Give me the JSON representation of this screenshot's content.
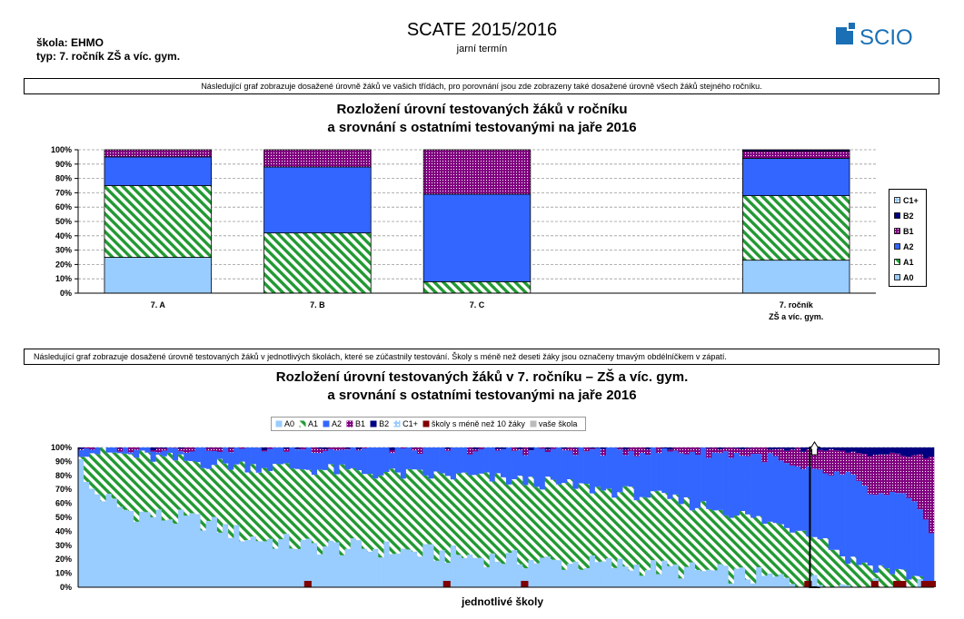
{
  "header": {
    "school_label": "škola: EHMO",
    "type_label": "typ: 7. ročník ZŠ a víc. gym.",
    "title": "SCATE 2015/2016",
    "subtitle": "jarní termín",
    "logo_text": "SCIO",
    "logo_color": "#1a6fb5"
  },
  "note1": "Následující graf zobrazuje dosažené úrovně žáků ve vašich třídách, pro porovnání jsou zde zobrazeny také dosažené úrovně všech žáků stejného ročníku.",
  "note2": "Následující graf zobrazuje dosažené úrovně testovaných žáků v jednotlivých školách, které se zúčastnily testování. Školy s méně než deseti žáky jsou označeny tmavým obdélníčkem v zápatí.",
  "colors": {
    "A0": "#99ccff",
    "A1": "#229933",
    "A2": "#3366ff",
    "B1": "#800080",
    "B2": "#000080",
    "C1+": "#99ccff",
    "small": "#800000",
    "grid": "#999999"
  },
  "chart_data": [
    {
      "type": "bar",
      "stacked": true,
      "title": "Rozložení úrovní testovaných žáků v ročníku",
      "subtitle": "a srovnání s ostatními testovanými na jaře 2016",
      "categories": [
        "7. A",
        "7. B",
        "7. C",
        "",
        "7. ročník ZŠ a víc. gym."
      ],
      "category_labels": [
        {
          "line1": "7. A",
          "line2": ""
        },
        {
          "line1": "7. B",
          "line2": ""
        },
        {
          "line1": "7. C",
          "line2": ""
        },
        {
          "line1": "",
          "line2": ""
        },
        {
          "line1": "7. ročník",
          "line2": "ZŠ a víc. gym."
        }
      ],
      "series": [
        {
          "name": "A0",
          "values": [
            25,
            0,
            0,
            0,
            23
          ]
        },
        {
          "name": "A1",
          "values": [
            50,
            42,
            8,
            0,
            45
          ]
        },
        {
          "name": "A2",
          "values": [
            20,
            46,
            61,
            0,
            26
          ]
        },
        {
          "name": "B1",
          "values": [
            5,
            12,
            31,
            0,
            5
          ]
        },
        {
          "name": "B2",
          "values": [
            0,
            0,
            0,
            0,
            1
          ]
        },
        {
          "name": "C1+",
          "values": [
            0,
            0,
            0,
            0,
            0
          ]
        }
      ],
      "legend_order": [
        "C1+",
        "B2",
        "B1",
        "A2",
        "A1",
        "A0"
      ],
      "yticks": [
        "0%",
        "10%",
        "20%",
        "30%",
        "40%",
        "50%",
        "60%",
        "70%",
        "80%",
        "90%",
        "100%"
      ],
      "ylim": [
        0,
        100
      ],
      "grid": true,
      "legend": "right"
    },
    {
      "type": "bar",
      "stacked": true,
      "title": "Rozložení úrovní testovaných žáků v 7. ročníku – ZŠ a víc. gym.",
      "subtitle": "a srovnání s ostatními testovanými na jaře 2016",
      "xlabel": "jednotlivé školy",
      "legend_items": [
        "A0",
        "A1",
        "A2",
        "B1",
        "B2",
        "C1+",
        "školy s méně než 10 žáky",
        "vaše škola"
      ],
      "yticks": [
        "0%",
        "10%",
        "20%",
        "30%",
        "40%",
        "50%",
        "60%",
        "70%",
        "80%",
        "90%",
        "100%"
      ],
      "ylim": [
        0,
        100
      ],
      "grid": true,
      "legend": "top",
      "school_count": 154,
      "highlighted_school_index": 132,
      "small_school_indices": [
        41,
        66,
        80,
        131,
        143,
        147,
        148,
        152,
        153,
        154
      ],
      "a0_profile": [
        [
          0,
          96
        ],
        [
          1,
          72
        ],
        [
          8,
          55
        ],
        [
          15,
          50
        ],
        [
          22,
          47
        ],
        [
          30,
          36
        ],
        [
          40,
          30
        ],
        [
          55,
          27
        ],
        [
          70,
          22
        ],
        [
          85,
          18
        ],
        [
          100,
          15
        ],
        [
          115,
          10
        ],
        [
          128,
          5
        ],
        [
          135,
          2
        ],
        [
          142,
          0
        ],
        [
          154,
          0
        ]
      ],
      "a1_profile": [
        [
          0,
          98
        ],
        [
          10,
          94
        ],
        [
          25,
          88
        ],
        [
          40,
          85
        ],
        [
          55,
          81
        ],
        [
          70,
          79
        ],
        [
          85,
          74
        ],
        [
          100,
          67
        ],
        [
          115,
          56
        ],
        [
          125,
          45
        ],
        [
          132,
          40
        ],
        [
          138,
          20
        ],
        [
          143,
          15
        ],
        [
          148,
          10
        ],
        [
          154,
          3
        ]
      ],
      "a2_profile": [
        [
          0,
          100
        ],
        [
          30,
          100
        ],
        [
          60,
          99
        ],
        [
          90,
          98
        ],
        [
          110,
          97
        ],
        [
          120,
          95
        ],
        [
          125,
          92
        ],
        [
          128,
          85
        ],
        [
          132,
          82
        ],
        [
          138,
          80
        ],
        [
          143,
          65
        ],
        [
          148,
          65
        ],
        [
          152,
          50
        ],
        [
          154,
          35
        ]
      ],
      "b1_profile": [
        [
          0,
          100
        ],
        [
          100,
          100
        ],
        [
          125,
          100
        ],
        [
          132,
          98
        ],
        [
          140,
          96
        ],
        [
          145,
          95
        ],
        [
          150,
          94
        ],
        [
          154,
          92
        ]
      ]
    }
  ]
}
